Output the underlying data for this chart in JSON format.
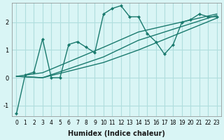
{
  "xlabel": "Humidex (Indice chaleur)",
  "background_color": "#d9f5f5",
  "grid_color": "#b0dede",
  "line_color": "#1a7a6e",
  "xlim": [
    -0.5,
    23.5
  ],
  "ylim": [
    -1.4,
    2.7
  ],
  "xticks": [
    0,
    1,
    2,
    3,
    4,
    5,
    6,
    7,
    8,
    9,
    10,
    11,
    12,
    13,
    14,
    15,
    16,
    17,
    18,
    19,
    20,
    21,
    22,
    23
  ],
  "yticks": [
    -1,
    0,
    1,
    2
  ],
  "line1_x": [
    0,
    1,
    2,
    3,
    4,
    5,
    6,
    7,
    8,
    9,
    10,
    11,
    12,
    13,
    14,
    15,
    16,
    17,
    18,
    19,
    20,
    21,
    22,
    23
  ],
  "line1_y": [
    -1.3,
    0.1,
    0.2,
    1.4,
    0.0,
    0.0,
    1.2,
    1.3,
    1.1,
    0.9,
    2.3,
    2.5,
    2.6,
    2.2,
    2.2,
    1.6,
    1.3,
    0.85,
    1.2,
    2.0,
    2.1,
    2.3,
    2.2,
    2.2
  ],
  "line2_x": [
    0,
    3,
    10,
    14,
    23
  ],
  "line2_y": [
    0.05,
    0.0,
    0.55,
    1.0,
    2.15
  ],
  "line3_x": [
    0,
    3,
    10,
    14,
    23
  ],
  "line3_y": [
    0.05,
    0.0,
    0.75,
    1.35,
    2.25
  ],
  "line4_x": [
    0,
    3,
    10,
    14,
    23
  ],
  "line4_y": [
    0.05,
    0.18,
    1.1,
    1.65,
    2.3
  ]
}
